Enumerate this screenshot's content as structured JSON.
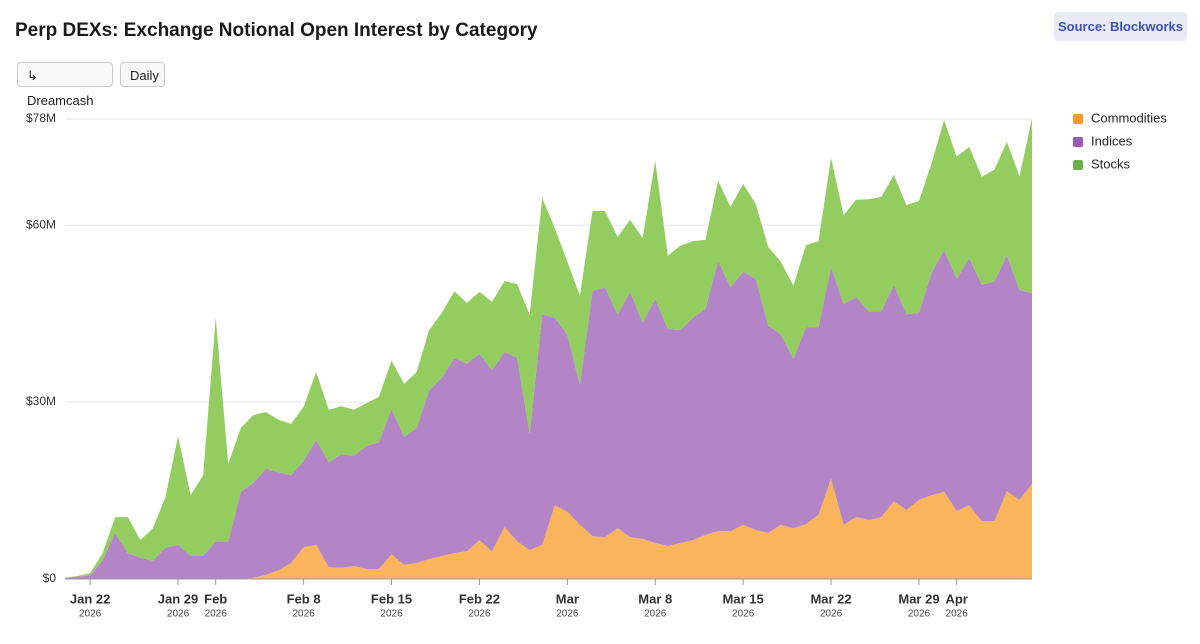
{
  "chart_data": {
    "type": "area",
    "stacked": true,
    "title": "Perp DEXs: Exchange Notional Open Interest by Category",
    "source": "Source: Blockworks",
    "buttons": [
      "↳ Dreamcash",
      "Daily"
    ],
    "watermark": "Blockworks",
    "x": [
      "2026-01-20",
      "2026-01-21",
      "2026-01-22",
      "2026-01-23",
      "2026-01-24",
      "2026-01-25",
      "2026-01-26",
      "2026-01-27",
      "2026-01-28",
      "2026-01-29",
      "2026-01-30",
      "2026-01-31",
      "2026-02-01",
      "2026-02-02",
      "2026-02-03",
      "2026-02-04",
      "2026-02-05",
      "2026-02-06",
      "2026-02-07",
      "2026-02-08",
      "2026-02-09",
      "2026-02-10",
      "2026-02-11",
      "2026-02-12",
      "2026-02-13",
      "2026-02-14",
      "2026-02-15",
      "2026-02-16",
      "2026-02-17",
      "2026-02-18",
      "2026-02-19",
      "2026-02-20",
      "2026-02-21",
      "2026-02-22",
      "2026-02-23",
      "2026-02-24",
      "2026-02-25",
      "2026-02-26",
      "2026-02-27",
      "2026-02-28",
      "2026-03-01",
      "2026-03-02",
      "2026-03-03",
      "2026-03-04",
      "2026-03-05",
      "2026-03-06",
      "2026-03-07",
      "2026-03-08",
      "2026-03-09",
      "2026-03-10",
      "2026-03-11",
      "2026-03-12",
      "2026-03-13",
      "2026-03-14",
      "2026-03-15",
      "2026-03-16",
      "2026-03-17",
      "2026-03-18",
      "2026-03-19",
      "2026-03-20",
      "2026-03-21",
      "2026-03-22",
      "2026-03-23",
      "2026-03-24",
      "2026-03-25",
      "2026-03-26",
      "2026-03-27",
      "2026-03-28",
      "2026-03-29",
      "2026-03-30",
      "2026-03-31",
      "2026-04-01",
      "2026-04-02",
      "2026-04-03",
      "2026-04-04",
      "2026-04-05",
      "2026-04-06",
      "2026-04-07"
    ],
    "series": [
      {
        "name": "Commodities",
        "color": "#f59a23",
        "fill": "#f9b45c",
        "values": [
          0,
          0,
          0,
          0,
          0,
          0,
          0,
          0,
          0,
          0,
          0,
          0,
          0,
          0,
          0,
          0.2,
          0.7,
          1.5,
          2.7,
          5.4,
          5.8,
          2.0,
          1.9,
          2.2,
          1.7,
          1.7,
          4.2,
          2.4,
          2.7,
          3.4,
          3.9,
          4.4,
          4.7,
          6.6,
          4.7,
          8.8,
          6.4,
          4.9,
          5.8,
          12.5,
          11.4,
          9.2,
          7.3,
          7.1,
          8.6,
          7.1,
          6.8,
          6.1,
          5.6,
          6.1,
          6.6,
          7.5,
          8.1,
          8.1,
          9.2,
          8.3,
          7.8,
          9.2,
          8.6,
          9.3,
          10.9,
          17.0,
          9.2,
          10.5,
          10.0,
          10.5,
          13.2,
          11.7,
          13.4,
          14.2,
          14.8,
          11.5,
          12.5,
          9.8,
          9.8,
          14.9,
          13.4,
          16.1
        ]
      },
      {
        "name": "Indices",
        "color": "#9b59b6",
        "fill": "#b384c6",
        "values": [
          0.2,
          0.4,
          0.6,
          3.2,
          7.8,
          4.4,
          3.6,
          3.1,
          5.3,
          5.8,
          3.9,
          3.9,
          6.4,
          6.4,
          14.8,
          16.1,
          18.0,
          16.6,
          14.9,
          14.6,
          17.8,
          17.8,
          19.3,
          18.7,
          20.9,
          21.5,
          24.6,
          21.7,
          22.9,
          28.6,
          30.2,
          33.1,
          31.8,
          31.6,
          30.7,
          29.7,
          31.1,
          19.7,
          39.1,
          31.8,
          30.0,
          23.7,
          41.5,
          42.4,
          36.2,
          41.6,
          36.6,
          41.4,
          36.8,
          36.1,
          37.7,
          38.3,
          45.8,
          41.4,
          42.9,
          42.6,
          35.1,
          32.3,
          28.7,
          33.4,
          31.8,
          35.9,
          37.4,
          37.3,
          35.4,
          34.9,
          36.7,
          33.2,
          31.7,
          37.7,
          41.0,
          39.4,
          41.9,
          40.1,
          40.6,
          40.0,
          35.6,
          32.4
        ]
      },
      {
        "name": "Stocks",
        "color": "#6ab04c",
        "fill": "#93cd5f",
        "values": [
          0,
          0.1,
          0.4,
          1.2,
          2.7,
          6.1,
          3.0,
          5.5,
          8.6,
          18.4,
          10.3,
          13.7,
          37.9,
          13.1,
          10.8,
          11.5,
          9.6,
          8.9,
          8.7,
          9.2,
          11.5,
          8.9,
          8.1,
          7.8,
          7.2,
          7.7,
          8.2,
          9.0,
          9.5,
          10.2,
          11.0,
          11.3,
          10.3,
          10.5,
          11.6,
          12.0,
          12.5,
          20.2,
          19.7,
          15.2,
          12.4,
          15.1,
          13.6,
          12.9,
          13.2,
          12.2,
          14.4,
          23.4,
          12.4,
          14.3,
          13.0,
          11.7,
          13.6,
          13.6,
          14.9,
          12.7,
          13.4,
          12.3,
          12.4,
          13.9,
          14.6,
          18.5,
          15.1,
          16.5,
          19.0,
          19.4,
          18.6,
          18.5,
          19.0,
          18.6,
          22.0,
          20.7,
          18.9,
          18.3,
          19.0,
          19.2,
          19.3,
          29.5
        ]
      }
    ],
    "xlim": [
      "2026-01-20",
      "2026-04-07"
    ],
    "xticks": [
      {
        "value": "2026-01-22",
        "label": "Jan 22"
      },
      {
        "value": "2026-01-29",
        "label": "Jan 29"
      },
      {
        "value": "2026-02-01",
        "label": "Feb"
      },
      {
        "value": "2026-02-08",
        "label": "Feb 8"
      },
      {
        "value": "2026-02-15",
        "label": "Feb 15"
      },
      {
        "value": "2026-02-22",
        "label": "Feb 22"
      },
      {
        "value": "2026-03-01",
        "label": "Mar"
      },
      {
        "value": "2026-03-08",
        "label": "Mar 8"
      },
      {
        "value": "2026-03-15",
        "label": "Mar 15"
      },
      {
        "value": "2026-03-22",
        "label": "Mar 22"
      },
      {
        "value": "2026-03-29",
        "label": "Mar 29"
      },
      {
        "value": "2026-04-01",
        "label": "Apr"
      }
    ],
    "xtick_year": "2026",
    "ylim": [
      0,
      78
    ],
    "yticks": [
      {
        "value": 0,
        "label": "$0"
      },
      {
        "value": 30,
        "label": "$30M"
      },
      {
        "value": 60,
        "label": "$60M"
      },
      {
        "value": 78,
        "label": "$78M"
      }
    ],
    "grid": true,
    "legend": "right"
  }
}
